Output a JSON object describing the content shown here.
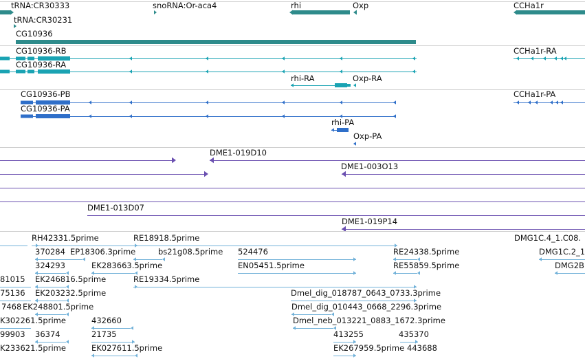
{
  "colors": {
    "gene": "#2e8b8b",
    "transcript": "#1aa3b3",
    "protein": "#2f6fc9",
    "clone": "#6a4fb0",
    "est": "#6fb0d8",
    "separator": "#cfcfcf"
  },
  "tracks": {
    "genes": [
      "tRNA:CR30333",
      "tRNA:CR30231",
      "snoRNA:Or-aca4",
      "rhi",
      "Oxp",
      "CCHa1r",
      "CG10936"
    ],
    "transcripts": [
      "CG10936-RB",
      "CG10936-RA",
      "rhi-RA",
      "Oxp-RA",
      "CCHa1r-RA"
    ],
    "proteins": [
      "CG10936-PB",
      "CG10936-PA",
      "rhi-PA",
      "Oxp-PA",
      "CCHa1r-PA"
    ],
    "clones": [
      "DME1-019D10",
      "DME1-003O13",
      "DME1-013D07",
      "DME1-019P14"
    ],
    "ests": [
      "RH42331.5prime",
      "RE18918.5prime",
      "DMG1C.4_1.C08.",
      "370284",
      "EP18306.3prime",
      "bs21g08.5prime",
      "524476",
      "RE24338.5prime",
      "DMG1C.2_1",
      "324293",
      "EK283663.5prime",
      "EN05451.5prime",
      "RE55859.5prime",
      "DMG2B",
      "81015",
      "EK246816.5prime",
      "RE19334.5prime",
      "75136",
      "EK203232.5prime",
      "Dmel_dig_018787_0643_0733.3prime",
      "7468",
      "EK248801.5prime",
      "Dmel_dig_010443_0668_2296.3prime",
      "K302261.5prime",
      "432660",
      "Dmel_neb_013221_0883_1672.3prime",
      "99903",
      "36374",
      "21735",
      "413255",
      "435370",
      "K233621.5prime",
      "EK027611.5prime",
      "EK267959.5prime",
      "443688"
    ]
  }
}
